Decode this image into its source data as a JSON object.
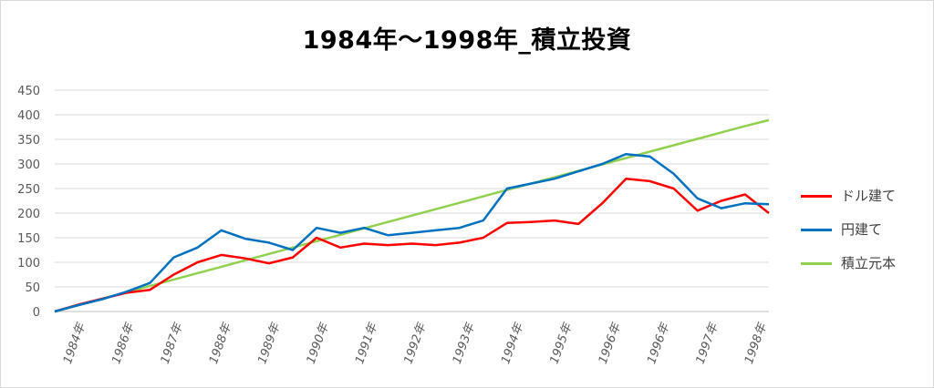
{
  "chart_data": {
    "type": "line",
    "title": "1984年～1998年_積立投資",
    "xlabel": "",
    "ylabel": "",
    "ylim": [
      0,
      450
    ],
    "yticks": [
      0,
      50,
      100,
      150,
      200,
      250,
      300,
      350,
      400,
      450
    ],
    "grid": true,
    "legend_position": "right",
    "x_tick_labels": [
      "1984年",
      "1986年",
      "1987年",
      "1988年",
      "1989年",
      "1990年",
      "1991年",
      "1992年",
      "1993年",
      "1994年",
      "1995年",
      "1996年",
      "1996年",
      "1997年",
      "1998年"
    ],
    "x": [
      0,
      0.5,
      1,
      1.5,
      2,
      2.5,
      3,
      3.5,
      4,
      4.5,
      5,
      5.5,
      6,
      6.5,
      7,
      7.5,
      8,
      8.5,
      9,
      9.5,
      10,
      10.5,
      11,
      11.5,
      12,
      12.5,
      13,
      13.5,
      14,
      14.5,
      15
    ],
    "series": [
      {
        "name": "ドル建て",
        "color": "#ff0000",
        "values": [
          0,
          14,
          26,
          38,
          44,
          75,
          100,
          115,
          108,
          98,
          110,
          150,
          130,
          138,
          135,
          138,
          135,
          140,
          150,
          180,
          182,
          185,
          178,
          220,
          270,
          265,
          250,
          205,
          225,
          238,
          200
        ]
      },
      {
        "name": "円建て",
        "color": "#0070c0",
        "values": [
          0,
          13,
          25,
          40,
          58,
          110,
          130,
          165,
          148,
          140,
          125,
          170,
          160,
          170,
          155,
          160,
          165,
          170,
          185,
          250,
          260,
          270,
          285,
          300,
          320,
          315,
          280,
          230,
          210,
          220,
          218
        ]
      },
      {
        "name": "積立元本",
        "color": "#92d050",
        "values": [
          0,
          13,
          26,
          39,
          52,
          65,
          78,
          91,
          104,
          117,
          130,
          143,
          156,
          169,
          182,
          195,
          208,
          221,
          234,
          247,
          260,
          273,
          286,
          299,
          312,
          325,
          338,
          351,
          364,
          377,
          389
        ]
      }
    ]
  }
}
